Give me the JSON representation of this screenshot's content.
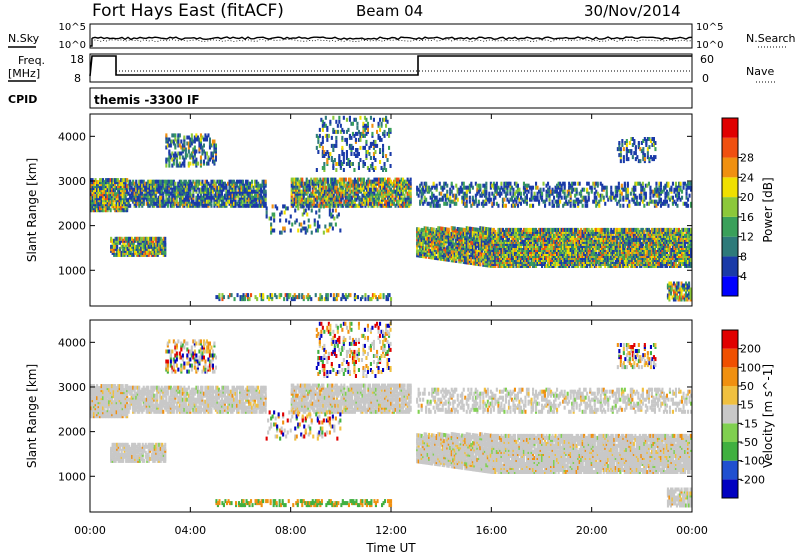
{
  "header": {
    "station": "Fort Hays East (fitACF)",
    "beam": "Beam 04",
    "date": "30/Nov/2014"
  },
  "noise_panel": {
    "left_label": "N.Sky",
    "right_label": "N.Search",
    "ticks": [
      "10^5",
      "10^0"
    ]
  },
  "freq_panel": {
    "left_label_1": "Freq.",
    "left_label_2": "[MHz]",
    "left_ticks": [
      "18",
      "8"
    ],
    "right_label": "Nave",
    "right_ticks": [
      "60",
      "0"
    ]
  },
  "cpid_panel": {
    "label": "CPID",
    "value": "themis -3300 IF"
  },
  "chart_data": [
    {
      "type": "heatmap",
      "name": "power",
      "ylabel": "Slant Range [km]",
      "xlabel": "",
      "colorbar_label": "Power [dB]",
      "x_ticks": [
        "00:00",
        "04:00",
        "08:00",
        "12:00",
        "16:00",
        "20:00",
        "00:00"
      ],
      "y_ticks": [
        "1000",
        "2000",
        "3000",
        "4000"
      ],
      "ylim": [
        200,
        4500
      ],
      "xlim_hours": [
        0,
        24
      ],
      "colorbar_ticks": [
        "4",
        "8",
        "12",
        "16",
        "20",
        "24",
        "28"
      ],
      "colorbar_colors": [
        "#0000ff",
        "#1a3aa8",
        "#2e7a7a",
        "#3aa05a",
        "#8cc83a",
        "#f0e000",
        "#f09010",
        "#f05010",
        "#e00000"
      ]
    },
    {
      "type": "heatmap",
      "name": "velocity",
      "ylabel": "Slant Range [km]",
      "xlabel": "Time UT",
      "colorbar_label": "Velocity [m s^-1]",
      "x_ticks": [
        "00:00",
        "04:00",
        "08:00",
        "12:00",
        "16:00",
        "20:00",
        "00:00"
      ],
      "y_ticks": [
        "1000",
        "2000",
        "3000",
        "4000"
      ],
      "ylim": [
        200,
        4500
      ],
      "xlim_hours": [
        0,
        24
      ],
      "colorbar_ticks": [
        "200",
        "100",
        "50",
        "15",
        "-15",
        "-50",
        "-100",
        "-200"
      ],
      "colorbar_colors": [
        "#0000c0",
        "#2050d0",
        "#40b040",
        "#80d050",
        "#c8c8c8",
        "#f0c040",
        "#f09010",
        "#f05000",
        "#e00000"
      ]
    }
  ]
}
